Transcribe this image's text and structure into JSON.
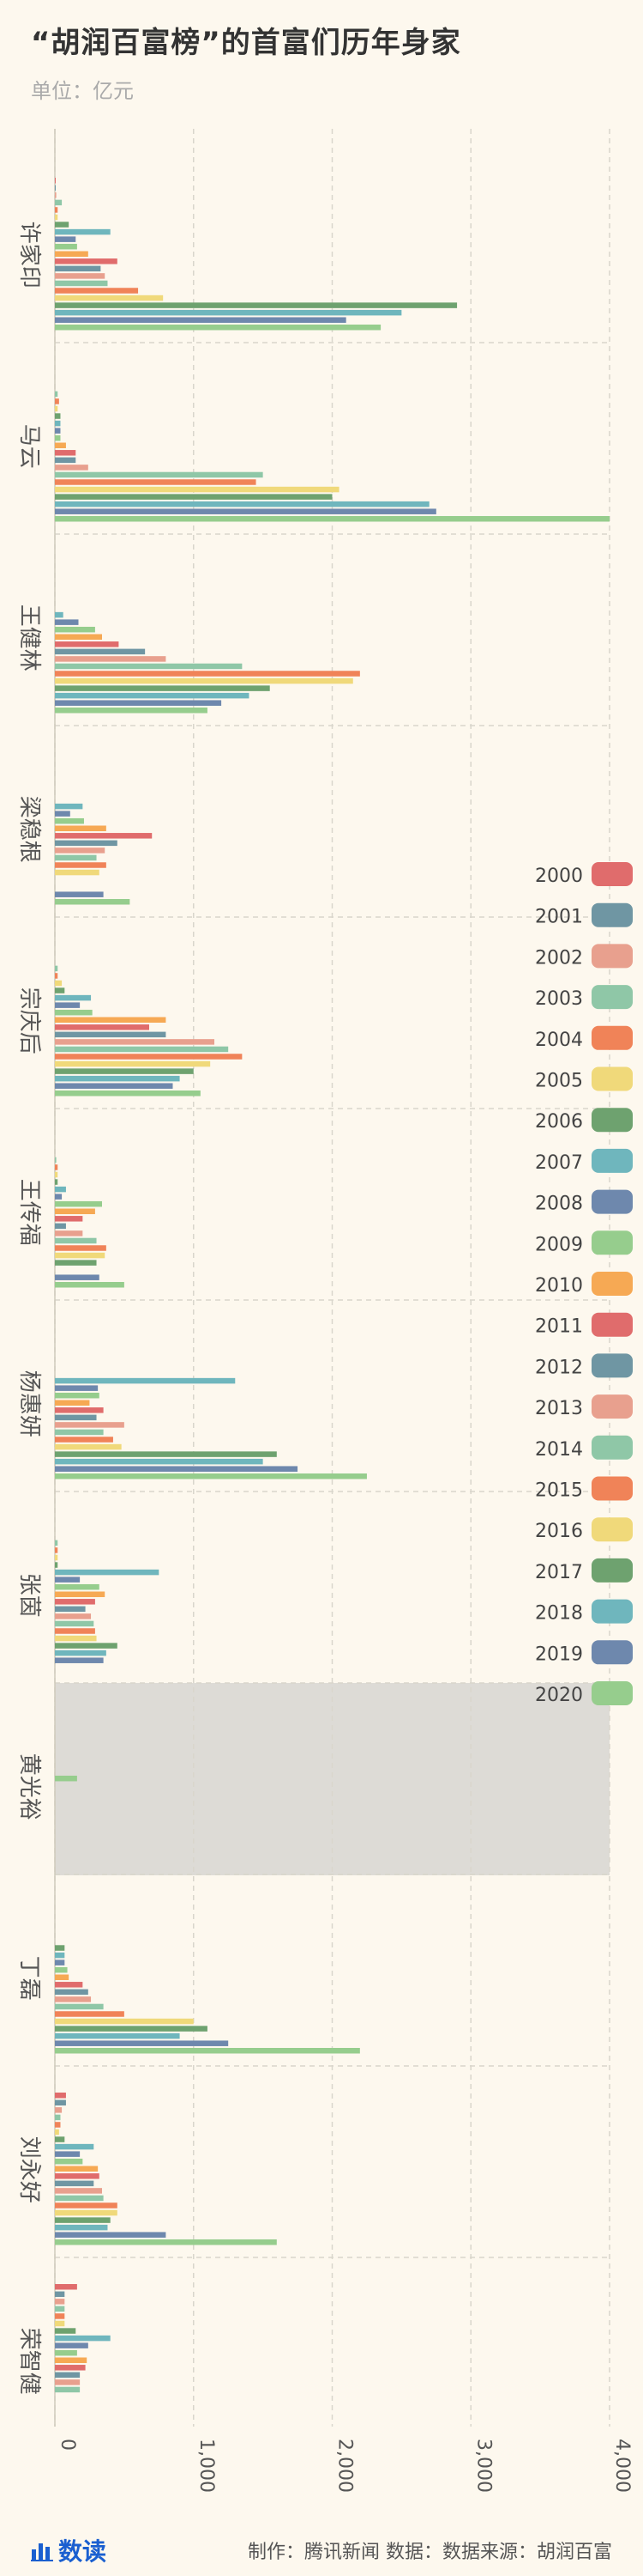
{
  "header": {
    "title": "“胡润百富榜”的首富们历年身家",
    "unit": "单位：亿元"
  },
  "footer": {
    "brand": "数读",
    "brand_icon": "bar-chart-icon",
    "credits": "制作：腾讯新闻  数据：数据来源：胡润百富"
  },
  "colors": {
    "background": "#fdf8ee",
    "highlight_band": "#dddbd6",
    "brand": "#1a5fd0"
  },
  "chart_data": {
    "type": "bar",
    "orientation": "horizontal",
    "grouped": true,
    "title": "“胡润百富榜”的首富们历年身家",
    "subtitle": "单位：亿元",
    "xlabel": "",
    "ylabel": "",
    "xlim": [
      0,
      4000
    ],
    "x_ticks": [
      "0",
      "1,000",
      "2,000",
      "3,000",
      "4,000"
    ],
    "grid": true,
    "legend_position": "right",
    "highlighted_category": "黄光裕",
    "categories": [
      "许家印",
      "马云",
      "王健林",
      "梁稳根",
      "宗庆后",
      "王传福",
      "杨惠妍",
      "张茵",
      "黄光裕",
      "丁磊",
      "刘永好",
      "荣智健"
    ],
    "series": [
      {
        "name": "2000",
        "color": "#e06c6c",
        "values": [
          3,
          0,
          0,
          0,
          0,
          0,
          0,
          0,
          0,
          0,
          80,
          160
        ]
      },
      {
        "name": "2001",
        "color": "#6f96a3",
        "values": [
          5,
          0,
          0,
          0,
          0,
          0,
          0,
          0,
          0,
          0,
          80,
          70
        ]
      },
      {
        "name": "2002",
        "color": "#e8a08e",
        "values": [
          10,
          0,
          0,
          0,
          0,
          0,
          0,
          0,
          0,
          0,
          50,
          70
        ]
      },
      {
        "name": "2003",
        "color": "#8fc7a7",
        "values": [
          50,
          20,
          0,
          0,
          20,
          10,
          0,
          20,
          0,
          0,
          40,
          70
        ]
      },
      {
        "name": "2004",
        "color": "#f08358",
        "values": [
          20,
          30,
          0,
          0,
          20,
          20,
          0,
          20,
          0,
          0,
          40,
          70
        ]
      },
      {
        "name": "2005",
        "color": "#f0d97a",
        "values": [
          20,
          20,
          0,
          0,
          50,
          20,
          0,
          20,
          0,
          0,
          30,
          70
        ]
      },
      {
        "name": "2006",
        "color": "#6ea26f",
        "values": [
          100,
          40,
          0,
          0,
          70,
          20,
          0,
          20,
          0,
          70,
          70,
          150
        ]
      },
      {
        "name": "2007",
        "color": "#6fb6bd",
        "values": [
          400,
          40,
          60,
          200,
          260,
          80,
          1300,
          750,
          0,
          70,
          280,
          400
        ]
      },
      {
        "name": "2008",
        "color": "#6e88ad",
        "values": [
          150,
          40,
          170,
          110,
          180,
          50,
          310,
          180,
          0,
          70,
          180,
          240
        ]
      },
      {
        "name": "2009",
        "color": "#96cd8d",
        "values": [
          160,
          40,
          290,
          210,
          270,
          340,
          320,
          320,
          160,
          90,
          200,
          160
        ]
      },
      {
        "name": "2010",
        "color": "#f6a954",
        "values": [
          240,
          80,
          340,
          370,
          800,
          290,
          250,
          360,
          0,
          100,
          310,
          230
        ]
      },
      {
        "name": "2011",
        "color": "#e06c6c",
        "values": [
          450,
          150,
          460,
          700,
          680,
          200,
          350,
          290,
          0,
          200,
          320,
          220
        ]
      },
      {
        "name": "2012",
        "color": "#6f96a3",
        "values": [
          330,
          150,
          650,
          450,
          800,
          80,
          300,
          220,
          0,
          240,
          280,
          180
        ]
      },
      {
        "name": "2013",
        "color": "#e8a08e",
        "values": [
          360,
          240,
          800,
          360,
          1150,
          200,
          500,
          260,
          0,
          260,
          340,
          180
        ]
      },
      {
        "name": "2014",
        "color": "#8fc7a7",
        "values": [
          380,
          1500,
          1350,
          300,
          1250,
          300,
          350,
          280,
          0,
          350,
          350,
          180
        ]
      },
      {
        "name": "2015",
        "color": "#f08358",
        "values": [
          600,
          1450,
          2200,
          370,
          1350,
          370,
          420,
          290,
          0,
          500,
          450,
          0
        ]
      },
      {
        "name": "2016",
        "color": "#f0d97a",
        "values": [
          780,
          2050,
          2150,
          320,
          1120,
          360,
          480,
          300,
          0,
          1000,
          450,
          0
        ]
      },
      {
        "name": "2017",
        "color": "#6ea26f",
        "values": [
          2900,
          2000,
          1550,
          0,
          1000,
          300,
          1600,
          450,
          0,
          1100,
          400,
          0
        ]
      },
      {
        "name": "2018",
        "color": "#6fb6bd",
        "values": [
          2500,
          2700,
          1400,
          0,
          900,
          0,
          1500,
          370,
          0,
          900,
          380,
          0
        ]
      },
      {
        "name": "2019",
        "color": "#6e88ad",
        "values": [
          2100,
          2750,
          1200,
          350,
          850,
          320,
          1750,
          350,
          0,
          1250,
          800,
          0
        ]
      },
      {
        "name": "2020",
        "color": "#96cd8d",
        "values": [
          2350,
          4000,
          1100,
          540,
          1050,
          500,
          2250,
          0,
          0,
          2200,
          1600,
          0
        ]
      }
    ]
  }
}
